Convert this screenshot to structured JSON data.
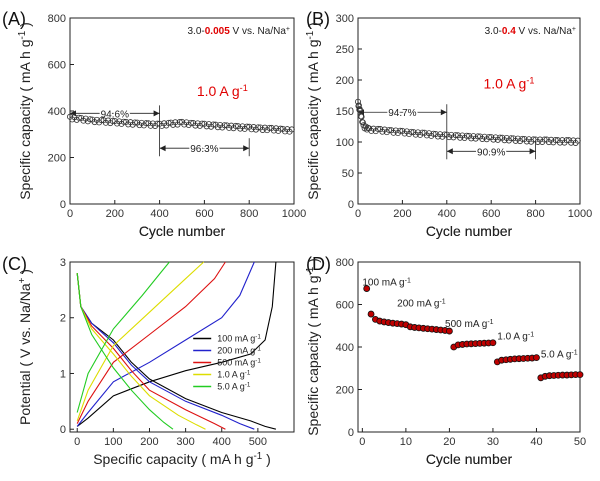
{
  "chart_data": [
    {
      "panel": "(A)",
      "type": "scatter",
      "voltage_prefix": "3.0-",
      "voltage_low": "0.005",
      "voltage_suffix": " V vs. Na/Na",
      "current": "1.0 A g",
      "xlabel": "Cycle number",
      "ylabel": "Specific capacity ( mA h g  )",
      "xlim": [
        0,
        1000
      ],
      "ylim": [
        0,
        800
      ],
      "xticks": [
        0,
        200,
        400,
        600,
        800,
        1000
      ],
      "yticks": [
        0,
        200,
        400,
        600,
        800
      ],
      "annotations": [
        {
          "text": "94.6%",
          "x_range": [
            0,
            400
          ],
          "y": 390
        },
        {
          "text": "96.3%",
          "x_range": [
            400,
            800
          ],
          "y": 240
        }
      ],
      "series": [
        {
          "points": [
            [
              0,
              370
            ],
            [
              50,
              365
            ],
            [
              100,
              358
            ],
            [
              150,
              355
            ],
            [
              200,
              352
            ],
            [
              250,
              348
            ],
            [
              300,
              345
            ],
            [
              350,
              342
            ],
            [
              400,
              340
            ],
            [
              450,
              345
            ],
            [
              500,
              348
            ],
            [
              550,
              343
            ],
            [
              600,
              340
            ],
            [
              650,
              336
            ],
            [
              700,
              333
            ],
            [
              750,
              330
            ],
            [
              800,
              327
            ],
            [
              850,
              324
            ],
            [
              900,
              322
            ],
            [
              950,
              318
            ],
            [
              1000,
              315
            ]
          ]
        }
      ]
    },
    {
      "panel": "(B)",
      "type": "scatter",
      "voltage_prefix": "3.0-",
      "voltage_low": "0.4",
      "voltage_suffix": " V vs. Na/Na",
      "current": "1.0 A g",
      "xlabel": "Cycle number",
      "ylabel": "Specific capacity ( mA h g  )",
      "xlim": [
        0,
        1000
      ],
      "ylim": [
        0,
        300
      ],
      "xticks": [
        0,
        200,
        400,
        600,
        800,
        1000
      ],
      "yticks": [
        0,
        50,
        100,
        150,
        200,
        250,
        300
      ],
      "annotations": [
        {
          "text": "94.7%",
          "x_range": [
            0,
            400
          ],
          "y": 148
        },
        {
          "text": "90.9%",
          "x_range": [
            400,
            800
          ],
          "y": 85
        }
      ],
      "series": [
        {
          "points": [
            [
              0,
              163
            ],
            [
              10,
              148
            ],
            [
              25,
              125
            ],
            [
              50,
              120
            ],
            [
              100,
              119
            ],
            [
              150,
              117
            ],
            [
              200,
              116
            ],
            [
              250,
              114
            ],
            [
              300,
              113
            ],
            [
              350,
              111
            ],
            [
              400,
              110
            ],
            [
              450,
              109
            ],
            [
              500,
              108
            ],
            [
              550,
              107
            ],
            [
              600,
              106
            ],
            [
              650,
              105
            ],
            [
              700,
              104
            ],
            [
              750,
              103
            ],
            [
              800,
              102
            ],
            [
              850,
              102
            ],
            [
              900,
              101
            ],
            [
              950,
              101
            ],
            [
              1000,
              100
            ]
          ]
        }
      ]
    },
    {
      "panel": "(C)",
      "type": "line",
      "xlabel": "Specific capacity ( mA h g  )",
      "ylabel": "Potential ( V vs. Na/Na  )",
      "xlim": [
        -20,
        600
      ],
      "ylim": [
        -0.05,
        3.0
      ],
      "xticks": [
        0,
        100,
        200,
        300,
        400,
        500
      ],
      "yticks": [
        0,
        1,
        2,
        3
      ],
      "series": [
        {
          "name": "100 mA g",
          "color": "#000000",
          "discharge": [
            [
              0,
              2.8
            ],
            [
              10,
              2.2
            ],
            [
              40,
              1.9
            ],
            [
              100,
              1.6
            ],
            [
              150,
              1.2
            ],
            [
              200,
              0.9
            ],
            [
              300,
              0.55
            ],
            [
              400,
              0.3
            ],
            [
              480,
              0.15
            ],
            [
              520,
              0.05
            ],
            [
              550,
              0.0
            ]
          ],
          "charge": [
            [
              0,
              0.05
            ],
            [
              30,
              0.2
            ],
            [
              100,
              0.6
            ],
            [
              200,
              0.85
            ],
            [
              300,
              1.05
            ],
            [
              400,
              1.2
            ],
            [
              480,
              1.35
            ],
            [
              520,
              1.6
            ],
            [
              540,
              2.2
            ],
            [
              550,
              3.0
            ]
          ]
        },
        {
          "name": "200 mA g",
          "color": "#2222cc",
          "discharge": [
            [
              0,
              2.8
            ],
            [
              10,
              2.2
            ],
            [
              40,
              1.9
            ],
            [
              100,
              1.55
            ],
            [
              150,
              1.15
            ],
            [
              200,
              0.85
            ],
            [
              300,
              0.5
            ],
            [
              400,
              0.25
            ],
            [
              450,
              0.1
            ],
            [
              490,
              0.0
            ]
          ],
          "charge": [
            [
              0,
              0.05
            ],
            [
              30,
              0.3
            ],
            [
              100,
              0.85
            ],
            [
              200,
              1.2
            ],
            [
              300,
              1.6
            ],
            [
              400,
              2.0
            ],
            [
              450,
              2.4
            ],
            [
              490,
              3.0
            ]
          ]
        },
        {
          "name": "500 mA g",
          "color": "#dd1111",
          "discharge": [
            [
              0,
              2.8
            ],
            [
              10,
              2.2
            ],
            [
              40,
              1.85
            ],
            [
              100,
              1.45
            ],
            [
              150,
              1.05
            ],
            [
              200,
              0.7
            ],
            [
              300,
              0.35
            ],
            [
              380,
              0.1
            ],
            [
              410,
              0.0
            ]
          ],
          "charge": [
            [
              0,
              0.1
            ],
            [
              30,
              0.5
            ],
            [
              100,
              1.2
            ],
            [
              200,
              1.7
            ],
            [
              300,
              2.2
            ],
            [
              380,
              2.7
            ],
            [
              410,
              3.0
            ]
          ]
        },
        {
          "name": "1.0    A g",
          "color": "#dddd00",
          "discharge": [
            [
              0,
              2.8
            ],
            [
              10,
              2.2
            ],
            [
              40,
              1.8
            ],
            [
              100,
              1.35
            ],
            [
              150,
              0.95
            ],
            [
              200,
              0.6
            ],
            [
              280,
              0.25
            ],
            [
              330,
              0.08
            ],
            [
              355,
              0.0
            ]
          ],
          "charge": [
            [
              0,
              0.15
            ],
            [
              30,
              0.7
            ],
            [
              100,
              1.5
            ],
            [
              200,
              2.1
            ],
            [
              300,
              2.7
            ],
            [
              350,
              3.0
            ]
          ]
        },
        {
          "name": "5.0    A g",
          "color": "#22cc22",
          "discharge": [
            [
              0,
              2.8
            ],
            [
              10,
              2.2
            ],
            [
              40,
              1.7
            ],
            [
              100,
              1.1
            ],
            [
              150,
              0.7
            ],
            [
              200,
              0.35
            ],
            [
              240,
              0.12
            ],
            [
              265,
              0.0
            ]
          ],
          "charge": [
            [
              0,
              0.3
            ],
            [
              30,
              1.0
            ],
            [
              100,
              1.8
            ],
            [
              180,
              2.4
            ],
            [
              230,
              2.8
            ],
            [
              255,
              3.0
            ]
          ]
        }
      ]
    },
    {
      "panel": "(D)",
      "type": "scatter",
      "xlabel": "Cycle number",
      "ylabel": "Specific capacity ( mA h g  )",
      "xlim": [
        -1,
        50
      ],
      "ylim": [
        0,
        800
      ],
      "xticks": [
        0,
        10,
        20,
        30,
        40,
        50
      ],
      "yticks": [
        0,
        200,
        400,
        600,
        800
      ],
      "rate_labels": [
        {
          "text": "100 mA g",
          "x": 0,
          "y": 690
        },
        {
          "text": "200 mA g",
          "x": 8,
          "y": 590
        },
        {
          "text": "500 mA g",
          "x": 19,
          "y": 495
        },
        {
          "text": "1.0  A g",
          "x": 31,
          "y": 435
        },
        {
          "text": "5.0 A g",
          "x": 41,
          "y": 350
        }
      ],
      "series": [
        {
          "points": [
            [
              1,
              675
            ],
            [
              2,
              555
            ],
            [
              3,
              530
            ],
            [
              4,
              522
            ],
            [
              5,
              518
            ],
            [
              6,
              515
            ],
            [
              7,
              512
            ],
            [
              8,
              510
            ],
            [
              9,
              508
            ],
            [
              10,
              505
            ],
            [
              11,
              495
            ],
            [
              12,
              492
            ],
            [
              13,
              490
            ],
            [
              14,
              488
            ],
            [
              15,
              486
            ],
            [
              16,
              484
            ],
            [
              17,
              482
            ],
            [
              18,
              480
            ],
            [
              19,
              478
            ],
            [
              20,
              475
            ],
            [
              21,
              400
            ],
            [
              22,
              410
            ],
            [
              23,
              412
            ],
            [
              24,
              414
            ],
            [
              25,
              415
            ],
            [
              26,
              416
            ],
            [
              27,
              417
            ],
            [
              28,
              418
            ],
            [
              29,
              419
            ],
            [
              30,
              420
            ],
            [
              31,
              330
            ],
            [
              32,
              338
            ],
            [
              33,
              340
            ],
            [
              34,
              342
            ],
            [
              35,
              344
            ],
            [
              36,
              345
            ],
            [
              37,
              346
            ],
            [
              38,
              347
            ],
            [
              39,
              348
            ],
            [
              40,
              350
            ],
            [
              41,
              255
            ],
            [
              42,
              262
            ],
            [
              43,
              265
            ],
            [
              44,
              266
            ],
            [
              45,
              267
            ],
            [
              46,
              268
            ],
            [
              47,
              268
            ],
            [
              48,
              269
            ],
            [
              49,
              270
            ],
            [
              50,
              270
            ]
          ]
        }
      ]
    }
  ]
}
